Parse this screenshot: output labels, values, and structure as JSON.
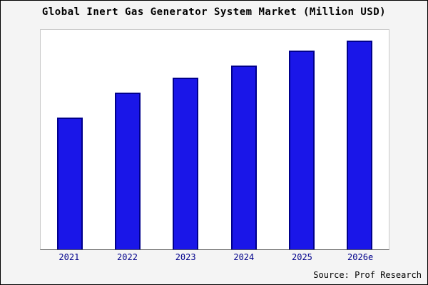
{
  "title": "Global Inert Gas Generator System Market (Million USD)",
  "source": "Source: Prof Research",
  "colors": {
    "background": "#f4f4f4",
    "plot_background": "#ffffff",
    "bar_fill": "#1a16e8",
    "bar_border": "#00008b",
    "tick_label": "#00008b",
    "text": "#000000"
  },
  "chart_data": {
    "type": "bar",
    "categories": [
      "2021",
      "2022",
      "2023",
      "2024",
      "2025",
      "2026e"
    ],
    "values": [
      63,
      75,
      82,
      88,
      95,
      100
    ],
    "title": "Global Inert Gas Generator System Market (Million USD)",
    "xlabel": "",
    "ylabel": "",
    "ylim": [
      0,
      105
    ],
    "grid": false,
    "legend": false,
    "annotations": [
      "Source: Prof Research"
    ]
  }
}
